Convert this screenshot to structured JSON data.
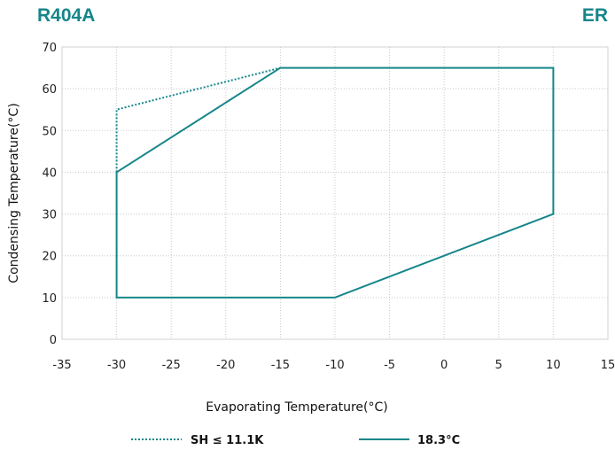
{
  "header": {
    "title_left": "R404A",
    "title_right": "ER"
  },
  "colors": {
    "brand": "#16868a",
    "series": "#16868a",
    "grid": "#c8c8c8",
    "frame": "#d0d0d0"
  },
  "chart_data": {
    "type": "line",
    "xlabel": "Evaporating Temperature(°C)",
    "ylabel": "Condensing Temperature(°C)",
    "xlim": [
      -35,
      15
    ],
    "ylim": [
      0,
      70
    ],
    "xticks": [
      -35,
      -30,
      -25,
      -20,
      -15,
      -10,
      -5,
      0,
      5,
      10,
      15
    ],
    "yticks": [
      0,
      10,
      20,
      30,
      40,
      50,
      60,
      70
    ],
    "grid": true,
    "legend_position": "bottom",
    "series": [
      {
        "name": "SH ≤ 11.1K",
        "style": "dotted",
        "x": [
          -30,
          -30,
          -15
        ],
        "y": [
          40,
          55,
          65
        ]
      },
      {
        "name": "18.3°C",
        "style": "solid",
        "x": [
          -30,
          -15,
          10,
          10,
          -10,
          -30,
          -30
        ],
        "y": [
          40,
          65,
          65,
          30,
          10,
          10,
          40
        ]
      }
    ]
  }
}
